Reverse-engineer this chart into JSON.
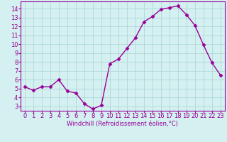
{
  "x": [
    0,
    1,
    2,
    3,
    4,
    5,
    6,
    7,
    8,
    9,
    10,
    11,
    12,
    13,
    14,
    15,
    16,
    17,
    18,
    19,
    20,
    21,
    22,
    23
  ],
  "y": [
    5.2,
    4.8,
    5.2,
    5.2,
    6.0,
    4.7,
    4.5,
    3.3,
    2.7,
    3.1,
    7.8,
    8.3,
    9.5,
    10.7,
    12.5,
    13.1,
    13.9,
    14.1,
    14.3,
    13.3,
    12.1,
    9.9,
    7.9,
    6.5
  ],
  "line_color": "#990099",
  "marker": "D",
  "markersize": 2.5,
  "linewidth": 1.0,
  "xlabel": "Windchill (Refroidissement éolien,°C)",
  "xlabel_fontsize": 6,
  "ylabel_ticks": [
    3,
    4,
    5,
    6,
    7,
    8,
    9,
    10,
    11,
    12,
    13,
    14
  ],
  "xlim": [
    -0.5,
    23.5
  ],
  "ylim": [
    2.5,
    14.8
  ],
  "bg_color": "#d4f0f0",
  "grid_color": "#b0d8d8",
  "tick_fontsize": 6,
  "title": ""
}
